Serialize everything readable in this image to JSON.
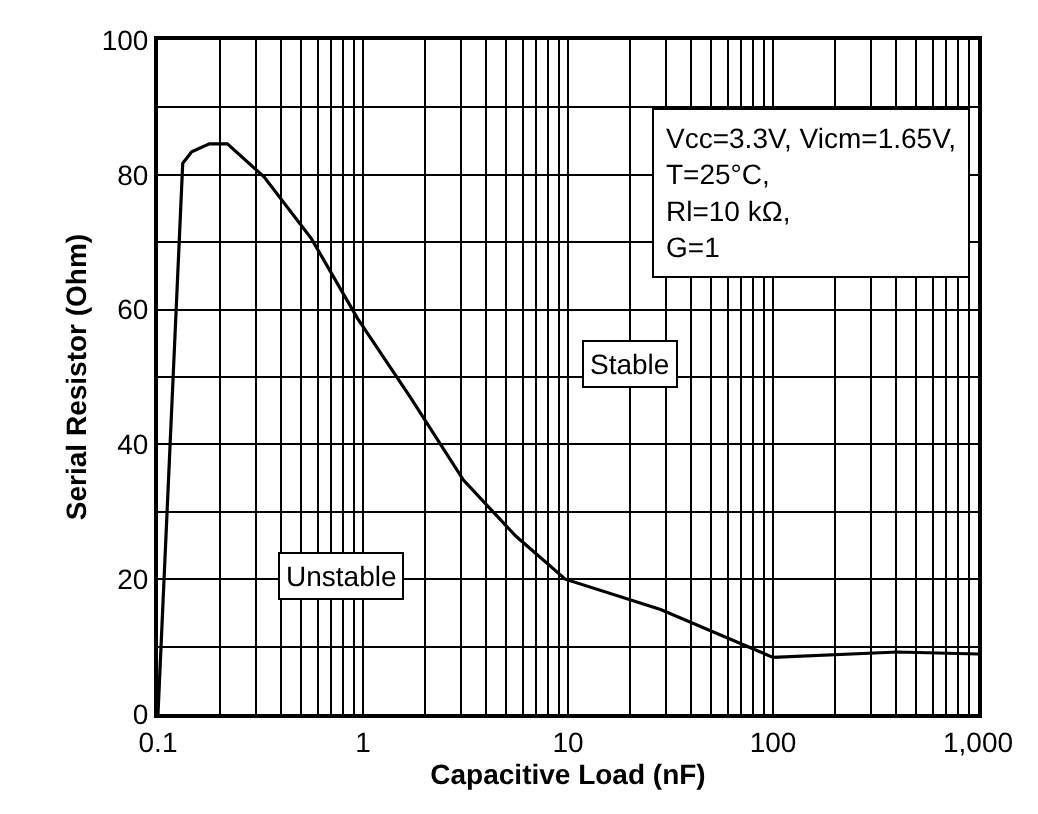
{
  "chart_data": {
    "type": "line",
    "xlabel": "Capacitive Load (nF)",
    "ylabel": "Serial Resistor (Ohm)",
    "log": "x",
    "x": [
      0.1,
      0.132,
      0.146,
      0.178,
      0.218,
      0.329,
      0.561,
      0.94,
      1.7,
      3.09,
      5.56,
      9.7,
      28.3,
      100,
      405,
      1000
    ],
    "series": [
      {
        "color": "#000000",
        "values": [
          0,
          81.7,
          83.4,
          84.6,
          84.6,
          79.7,
          70.5,
          58.7,
          47.0,
          34.7,
          26.4,
          20.0,
          15.5,
          8.4,
          9.2,
          8.9
        ]
      }
    ],
    "xlim": [
      0.1,
      1000
    ],
    "ylim": [
      0,
      100
    ],
    "xticks": [
      0.1,
      {
        "value": 0.2,
        "label": null
      },
      {
        "value": 0.3,
        "label": null
      },
      {
        "value": 0.4,
        "label": null
      },
      {
        "value": 0.5,
        "label": null
      },
      {
        "value": 0.6,
        "label": null
      },
      {
        "value": 0.7,
        "label": null
      },
      {
        "value": 0.8,
        "label": null
      },
      {
        "value": 0.9,
        "label": null
      },
      1,
      {
        "value": 2,
        "label": null
      },
      {
        "value": 3,
        "label": null
      },
      {
        "value": 4,
        "label": null
      },
      {
        "value": 5,
        "label": null
      },
      {
        "value": 6,
        "label": null
      },
      {
        "value": 7,
        "label": null
      },
      {
        "value": 8,
        "label": null
      },
      {
        "value": 9,
        "label": null
      },
      10,
      {
        "value": 20,
        "label": null
      },
      {
        "value": 30,
        "label": null
      },
      {
        "value": 40,
        "label": null
      },
      {
        "value": 50,
        "label": null
      },
      {
        "value": 60,
        "label": null
      },
      {
        "value": 70,
        "label": null
      },
      {
        "value": 80,
        "label": null
      },
      {
        "value": 90,
        "label": null
      },
      100,
      {
        "value": 200,
        "label": null
      },
      {
        "value": 300,
        "label": null
      },
      {
        "value": 400,
        "label": null
      },
      {
        "value": 500,
        "label": null
      },
      {
        "value": 600,
        "label": null
      },
      {
        "value": 700,
        "label": null
      },
      {
        "value": 800,
        "label": null
      },
      {
        "value": 900,
        "label": null
      },
      {
        "value": 1000,
        "label": "1,000"
      }
    ],
    "yticks": [
      0,
      {
        "value": 10,
        "label": null
      },
      20,
      {
        "value": 30,
        "label": null
      },
      40,
      {
        "value": 50,
        "label": null
      },
      60,
      {
        "value": 70,
        "label": null
      },
      80,
      {
        "value": 90,
        "label": null
      },
      100
    ],
    "grid": true,
    "marker": "none",
    "line_style": "solid",
    "annotations": [
      "Vcc=3.3V, Vicm=1.65V,\nT=25°C,\nRl=10 kΩ,\nG=1",
      "Stable",
      "Unstable"
    ]
  }
}
